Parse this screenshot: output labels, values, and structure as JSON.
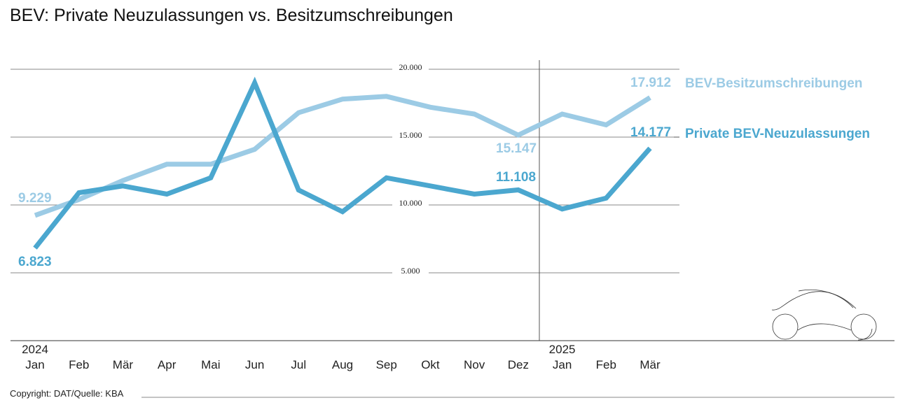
{
  "title": "BEV: Private Neuzulassungen vs. Besitzumschreibungen",
  "copyright": "Copyright: DAT/Quelle: KBA",
  "chart_data": {
    "type": "line",
    "title": "BEV: Private Neuzulassungen vs. Besitzumschreibungen",
    "x": [
      "Jan",
      "Feb",
      "Mär",
      "Apr",
      "Mai",
      "Jun",
      "Jul",
      "Aug",
      "Sep",
      "Okt",
      "Nov",
      "Dez",
      "Jan",
      "Feb",
      "Mär"
    ],
    "year_labels": [
      {
        "index": 0,
        "label": "2024"
      },
      {
        "index": 12,
        "label": "2025"
      }
    ],
    "ylim": [
      0,
      20000
    ],
    "yticks": [
      5000,
      10000,
      15000,
      20000
    ],
    "ytick_labels": [
      "5.000",
      "10.000",
      "15.000",
      "20.000"
    ],
    "grid": true,
    "series": [
      {
        "name": "BEV-Besitzumschreibungen",
        "color": "#9ccbe5",
        "values": [
          9229,
          10400,
          11800,
          13000,
          13000,
          14100,
          16800,
          17800,
          18000,
          17200,
          16700,
          15147,
          16700,
          15900,
          17912
        ],
        "labels": [
          {
            "index": 0,
            "text": "9.229"
          },
          {
            "index": 11,
            "text": "15.147"
          },
          {
            "index": 14,
            "text": "17.912"
          }
        ]
      },
      {
        "name": "Private BEV-Neuzulassungen",
        "color": "#4ba7cf",
        "values": [
          6823,
          10900,
          11400,
          10800,
          12000,
          19000,
          11100,
          9500,
          12000,
          11400,
          10800,
          11108,
          9700,
          10500,
          14177
        ],
        "labels": [
          {
            "index": 0,
            "text": "6.823"
          },
          {
            "index": 11,
            "text": "11.108"
          },
          {
            "index": 14,
            "text": "14.177"
          }
        ]
      }
    ]
  }
}
